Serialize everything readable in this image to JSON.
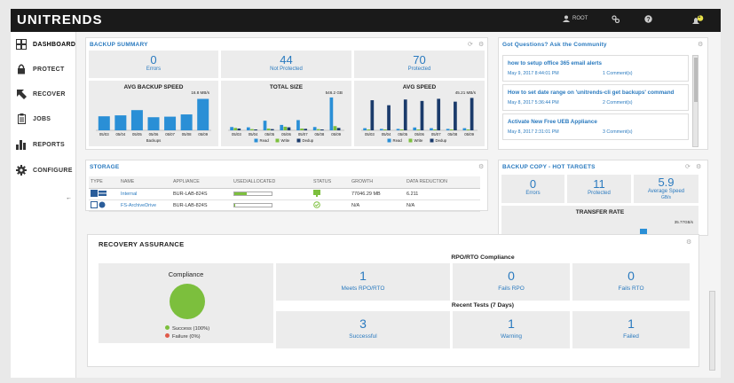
{
  "topbar": {
    "logo": "UNITRENDS",
    "user": "ROOT",
    "alert_count": "1"
  },
  "sidebar": {
    "items": [
      {
        "label": "DASHBOARD",
        "icon": "dashboard-grid-icon"
      },
      {
        "label": "PROTECT",
        "icon": "lock-icon"
      },
      {
        "label": "RECOVER",
        "icon": "recover-arrow-icon"
      },
      {
        "label": "JOBS",
        "icon": "clipboard-icon"
      },
      {
        "label": "REPORTS",
        "icon": "bar-chart-icon"
      },
      {
        "label": "CONFIGURE",
        "icon": "gear-icon"
      }
    ],
    "collapse": "←"
  },
  "backup_summary": {
    "title": "BACKUP SUMMARY",
    "stats": [
      {
        "value": "0",
        "label": "Errors"
      },
      {
        "value": "44",
        "label": "Not Protected"
      },
      {
        "value": "70",
        "label": "Protected"
      }
    ]
  },
  "chart_data": [
    {
      "type": "bar",
      "title": "AVG BACKUP SPEED",
      "categories": [
        "05/03",
        "05/04",
        "05/05",
        "05/06",
        "05/07",
        "05/08",
        "05/09"
      ],
      "series": [
        {
          "name": "Backups",
          "values": [
            7.5,
            8.0,
            10.8,
            7.0,
            7.3,
            8.5,
            16.8
          ]
        }
      ],
      "max_label": "16.8 MB/s",
      "ylim": [
        0,
        18
      ]
    },
    {
      "type": "bar",
      "title": "TOTAL SIZE",
      "categories": [
        "05/03",
        "05/04",
        "05/05",
        "05/06",
        "05/07",
        "05/08",
        "05/09"
      ],
      "series": [
        {
          "name": "Read",
          "values": [
            55,
            50,
            160,
            90,
            170,
            55,
            546.2
          ]
        },
        {
          "name": "Write",
          "values": [
            40,
            20,
            30,
            60,
            30,
            20,
            70
          ]
        },
        {
          "name": "Dedup",
          "values": [
            30,
            15,
            20,
            50,
            25,
            15,
            40
          ]
        }
      ],
      "max_label": "546.2 GB",
      "ylim": [
        0,
        560
      ]
    },
    {
      "type": "bar",
      "title": "AVG SPEED",
      "categories": [
        "05/03",
        "05/04",
        "05/05",
        "05/06",
        "05/07",
        "05/08",
        "05/09"
      ],
      "series": [
        {
          "name": "Read",
          "values": [
            3,
            2,
            2,
            4,
            3,
            2,
            3
          ]
        },
        {
          "name": "Write",
          "values": [
            1,
            1,
            1,
            1,
            1,
            1,
            1
          ]
        },
        {
          "name": "Dedup",
          "values": [
            42,
            35,
            43,
            41,
            44,
            40,
            45.21
          ]
        }
      ],
      "max_label": "45.21 MB/s",
      "ylim": [
        0,
        47
      ]
    }
  ],
  "legend": {
    "read": "Read",
    "write": "Write",
    "dedup": "Dedup"
  },
  "colors": {
    "accent": "#2a7abf",
    "read": "#2a8fd6",
    "write": "#7cbf3d",
    "dedup": "#1b3b6b",
    "topbar": "#1a1a1a"
  },
  "community": {
    "title": "Got Questions? Ask the Community",
    "items": [
      {
        "q": "how to setup office 365 email alerts",
        "date": "May 9, 2017 8:44:01 PM",
        "comments": "1 Comment(s)"
      },
      {
        "q": "How to set date range on 'unitrends-cli get backups' command",
        "date": "May 8, 2017 5:36:44 PM",
        "comments": "2 Comment(s)"
      },
      {
        "q": "Activate New Free UEB Appliance",
        "date": "May 8, 2017 2:31:01 PM",
        "comments": "3 Comment(s)"
      }
    ]
  },
  "storage": {
    "title": "STORAGE",
    "columns": [
      "TYPE",
      "NAME",
      "APPLIANCE",
      "USED/ALLOCATED",
      "STATUS",
      "GROWTH",
      "DATA REDUCTION"
    ],
    "rows": [
      {
        "name": "Internal",
        "appliance": "BUR-LAB-824S",
        "used": 0.34,
        "growth": "77046.29 MB",
        "reduction": "6.211"
      },
      {
        "name": "FS-ArchiveDrive",
        "appliance": "BUR-LAB-824S",
        "used": 0.02,
        "growth": "N/A",
        "reduction": "N/A"
      }
    ]
  },
  "backup_copy": {
    "title": "BACKUP COPY - HOT TARGETS",
    "stats": [
      {
        "value": "0",
        "label": "Errors"
      },
      {
        "value": "11",
        "label": "Protected"
      },
      {
        "value": "5.9",
        "label": "Average Speed",
        "unit": "GB/s"
      }
    ],
    "transfer_title": "TRANSFER RATE",
    "transfer_max": "35.77GB/s"
  },
  "recovery": {
    "title": "RECOVERY ASSURANCE",
    "compliance_title": "Compliance",
    "success_label": "Success (100%)",
    "failure_label": "Failure (0%)",
    "success_pct": 100,
    "rpo_title": "RPO/RTO Compliance",
    "rpo": [
      {
        "value": "1",
        "label": "Meets RPO/RTO"
      },
      {
        "value": "0",
        "label": "Fails RPO"
      },
      {
        "value": "0",
        "label": "Fails RTO"
      }
    ],
    "tests_title": "Recent Tests (7 Days)",
    "tests": [
      {
        "value": "3",
        "label": "Successful"
      },
      {
        "value": "1",
        "label": "Warning"
      },
      {
        "value": "1",
        "label": "Failed"
      }
    ]
  }
}
